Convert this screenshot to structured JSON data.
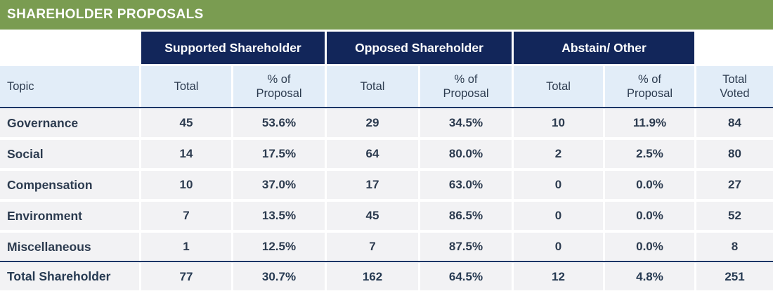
{
  "title": "SHAREHOLDER PROPOSALS",
  "chart_data": {
    "type": "table",
    "title": "SHAREHOLDER PROPOSALS",
    "groups": [
      "Supported Shareholder",
      "Opposed Shareholder",
      "Abstain/ Other"
    ],
    "header": {
      "topic": "Topic",
      "total": "Total",
      "pct": "% of Proposal",
      "total_voted": "Total Voted"
    },
    "columns": [
      "Topic",
      "Supported Total",
      "Supported % of Proposal",
      "Opposed Total",
      "Opposed % of Proposal",
      "Abstain/Other Total",
      "Abstain/Other % of Proposal",
      "Total Voted"
    ],
    "rows": [
      [
        "Governance",
        "45",
        "53.6%",
        "29",
        "34.5%",
        "10",
        "11.9%",
        "84"
      ],
      [
        "Social",
        "14",
        "17.5%",
        "64",
        "80.0%",
        "2",
        "2.5%",
        "80"
      ],
      [
        "Compensation",
        "10",
        "37.0%",
        "17",
        "63.0%",
        "0",
        "0.0%",
        "27"
      ],
      [
        "Environment",
        "7",
        "13.5%",
        "45",
        "86.5%",
        "0",
        "0.0%",
        "52"
      ],
      [
        "Miscellaneous",
        "1",
        "12.5%",
        "7",
        "87.5%",
        "0",
        "0.0%",
        "8"
      ]
    ],
    "total_row": [
      "Total Shareholder",
      "77",
      "30.7%",
      "162",
      "64.5%",
      "12",
      "4.8%",
      "251"
    ]
  },
  "colors": {
    "banner_green": "#7a9c51",
    "header_navy": "#12265a",
    "rule_navy": "#1b3566",
    "header_blue": "#e2edf8",
    "row_gray": "#f2f2f4",
    "text": "#2c3b4f",
    "text_strong": "#263a52"
  }
}
